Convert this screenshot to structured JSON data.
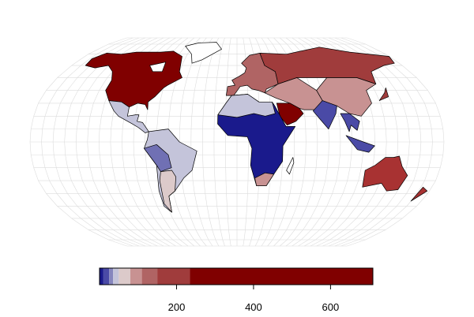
{
  "colorbar": {
    "lim": [
      0,
      710
    ],
    "breaks": [
      0,
      10,
      25,
      35,
      50,
      80,
      110,
      150,
      235,
      710
    ],
    "colors": [
      "#1a1a8c",
      "#4a4aa6",
      "#8686bd",
      "#c4c4da",
      "#dccaca",
      "#c89292",
      "#b06464",
      "#a03c3c",
      "#800000"
    ],
    "ticks": [
      200,
      400,
      600
    ]
  }
}
